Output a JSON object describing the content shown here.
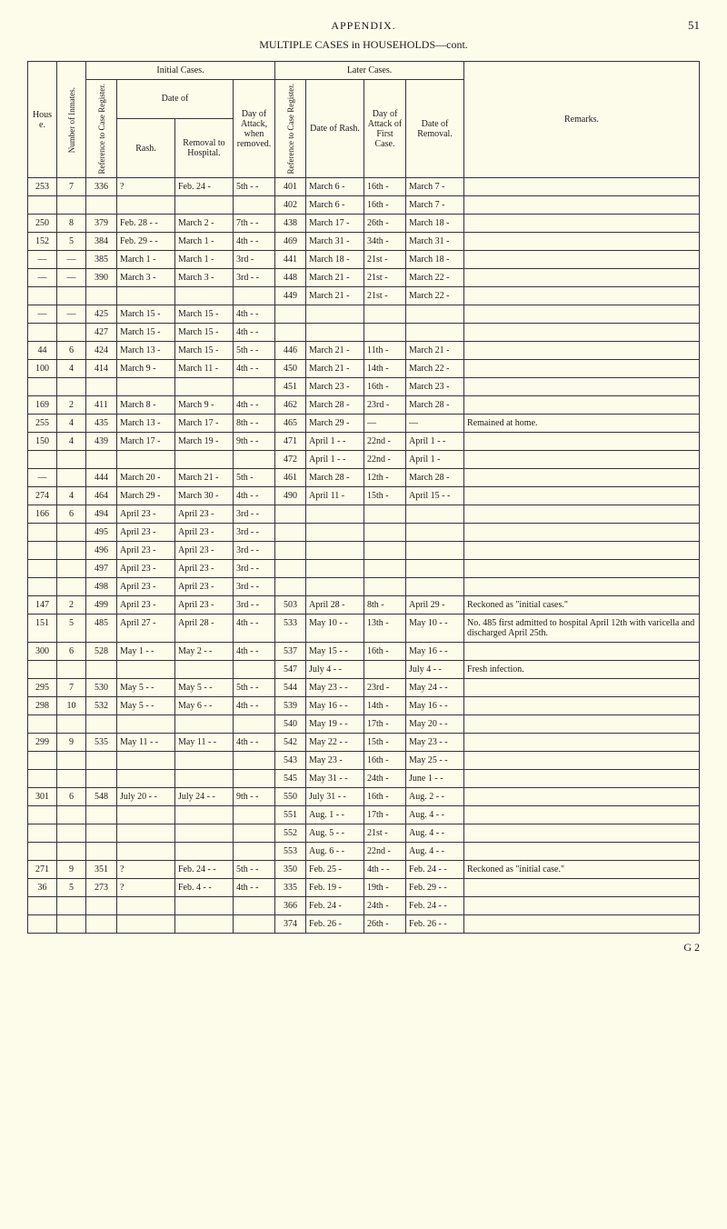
{
  "header": {
    "title": "APPENDIX.",
    "page_number": "51",
    "subtitle": "MULTIPLE CASES in HOUSEHOLDS—cont."
  },
  "columns": {
    "house": "House.",
    "inmates": "Number of Inmates.",
    "initial_group": "Initial Cases.",
    "later_group": "Later Cases.",
    "ref": "Reference to Case Register.",
    "date_of": "Date of",
    "rash": "Rash.",
    "removal": "Removal to Hospital.",
    "day_attack": "Day of Attack, when removed.",
    "ref2": "Reference to Case Register.",
    "date_rash": "Date of Rash.",
    "day_first": "Day of Attack of First Case.",
    "date_removal": "Date of Removal.",
    "remarks": "Remarks."
  },
  "rows": [
    {
      "g": "s",
      "house": "253",
      "inmates": "7",
      "ref": "336",
      "rash": "?",
      "removal": "Feb. 24  -",
      "day": "5th -  -",
      "ref2": "401",
      "drash": "March 6  -",
      "dfirst": "16th  -",
      "dremoval": "March 7  -",
      "remarks": ""
    },
    {
      "g": "c",
      "house": "",
      "inmates": "",
      "ref": "",
      "rash": "",
      "removal": "",
      "day": "",
      "ref2": "402",
      "drash": "March 6  -",
      "dfirst": "16th  -",
      "dremoval": "March 7  -",
      "remarks": ""
    },
    {
      "g": "s",
      "house": "250",
      "inmates": "8",
      "ref": "379",
      "rash": "Feb. 28 -  -",
      "removal": "March 2  -",
      "day": "7th -  -",
      "ref2": "438",
      "drash": "March 17  -",
      "dfirst": "26th  -",
      "dremoval": "March 18  -",
      "remarks": ""
    },
    {
      "g": "s",
      "house": "152",
      "inmates": "5",
      "ref": "384",
      "rash": "Feb. 29 -  -",
      "removal": "March 1  -",
      "day": "4th -  -",
      "ref2": "469",
      "drash": "March 31  -",
      "dfirst": "34th  -",
      "dremoval": "March 31  -",
      "remarks": ""
    },
    {
      "g": "s",
      "house": "—",
      "inmates": "—",
      "ref": "385",
      "rash": "March 1  -",
      "removal": "March 1  -",
      "day": "3rd -",
      "ref2": "441",
      "drash": "March 18  -",
      "dfirst": "21st  -",
      "dremoval": "March 18  -",
      "remarks": ""
    },
    {
      "g": "s",
      "house": "—",
      "inmates": "—",
      "ref": "390",
      "rash": "March 3  -",
      "removal": "March 3  -",
      "day": "3rd -  -",
      "ref2": "448",
      "drash": "March 21  -",
      "dfirst": "21st  -",
      "dremoval": "March 22  -",
      "remarks": ""
    },
    {
      "g": "c",
      "house": "",
      "inmates": "",
      "ref": "",
      "rash": "",
      "removal": "",
      "day": "",
      "ref2": "449",
      "drash": "March 21  -",
      "dfirst": "21st  -",
      "dremoval": "March 22  -",
      "remarks": ""
    },
    {
      "g": "s",
      "house": "—",
      "inmates": "—",
      "ref": "425",
      "rash": "March 15  -",
      "removal": "March 15  -",
      "day": "4th -  -",
      "ref2": "",
      "drash": "",
      "dfirst": "",
      "dremoval": "",
      "remarks": ""
    },
    {
      "g": "c",
      "house": "",
      "inmates": "",
      "ref": "427",
      "rash": "March 15  -",
      "removal": "March 15  -",
      "day": "4th -  -",
      "ref2": "",
      "drash": "",
      "dfirst": "",
      "dremoval": "",
      "remarks": ""
    },
    {
      "g": "s",
      "house": "44",
      "inmates": "6",
      "ref": "424",
      "rash": "March 13  -",
      "removal": "March 15  -",
      "day": "5th -  -",
      "ref2": "446",
      "drash": "March 21  -",
      "dfirst": "11th  -",
      "dremoval": "March 21  -",
      "remarks": ""
    },
    {
      "g": "s",
      "house": "100",
      "inmates": "4",
      "ref": "414",
      "rash": "March 9  -",
      "removal": "March 11  -",
      "day": "4th -  -",
      "ref2": "450",
      "drash": "March 21  -",
      "dfirst": "14th  -",
      "dremoval": "March 22  -",
      "remarks": ""
    },
    {
      "g": "c",
      "house": "",
      "inmates": "",
      "ref": "",
      "rash": "",
      "removal": "",
      "day": "",
      "ref2": "451",
      "drash": "March 23  -",
      "dfirst": "16th  -",
      "dremoval": "March 23  -",
      "remarks": ""
    },
    {
      "g": "s",
      "house": "169",
      "inmates": "2",
      "ref": "411",
      "rash": "March 8  -",
      "removal": "March 9  -",
      "day": "4th -  -",
      "ref2": "462",
      "drash": "March 28  -",
      "dfirst": "23rd  -",
      "dremoval": "March 28  -",
      "remarks": ""
    },
    {
      "g": "s",
      "house": "255",
      "inmates": "4",
      "ref": "435",
      "rash": "March 13  -",
      "removal": "March 17  -",
      "day": "8th -  -",
      "ref2": "465",
      "drash": "March 29  -",
      "dfirst": "—",
      "dremoval": "—",
      "remarks": "Remained at home."
    },
    {
      "g": "s",
      "house": "150",
      "inmates": "4",
      "ref": "439",
      "rash": "March 17  -",
      "removal": "March 19  -",
      "day": "9th -  -",
      "ref2": "471",
      "drash": "April 1  -  -",
      "dfirst": "22nd  -",
      "dremoval": "April 1  -  -",
      "remarks": ""
    },
    {
      "g": "c",
      "house": "",
      "inmates": "",
      "ref": "",
      "rash": "",
      "removal": "",
      "day": "",
      "ref2": "472",
      "drash": "April 1  -  -",
      "dfirst": "22nd  -",
      "dremoval": "April 1  -",
      "remarks": ""
    },
    {
      "g": "s",
      "house": "—",
      "inmates": "",
      "ref": "444",
      "rash": "March 20  -",
      "removal": "March 21  -",
      "day": "5th -",
      "ref2": "461",
      "drash": "March 28  -",
      "dfirst": "12th  -",
      "dremoval": "March 28  -",
      "remarks": ""
    },
    {
      "g": "s",
      "house": "274",
      "inmates": "4",
      "ref": "464",
      "rash": "March 29  -",
      "removal": "March 30  -",
      "day": "4th -  -",
      "ref2": "490",
      "drash": "April 11  -",
      "dfirst": "15th  -",
      "dremoval": "April 15 -  -",
      "remarks": ""
    },
    {
      "g": "s",
      "house": "166",
      "inmates": "6",
      "ref": "494",
      "rash": "April 23  -",
      "removal": "April 23  -",
      "day": "3rd -  -",
      "ref2": "",
      "drash": "",
      "dfirst": "",
      "dremoval": "",
      "remarks": ""
    },
    {
      "g": "c",
      "house": "",
      "inmates": "",
      "ref": "495",
      "rash": "April 23  -",
      "removal": "April 23  -",
      "day": "3rd -  -",
      "ref2": "",
      "drash": "",
      "dfirst": "",
      "dremoval": "",
      "remarks": ""
    },
    {
      "g": "c",
      "house": "",
      "inmates": "",
      "ref": "496",
      "rash": "April 23  -",
      "removal": "April 23  -",
      "day": "3rd -  -",
      "ref2": "",
      "drash": "",
      "dfirst": "",
      "dremoval": "",
      "remarks": ""
    },
    {
      "g": "c",
      "house": "",
      "inmates": "",
      "ref": "497",
      "rash": "April 23  -",
      "removal": "April 23  -",
      "day": "3rd -  -",
      "ref2": "",
      "drash": "",
      "dfirst": "",
      "dremoval": "",
      "remarks": ""
    },
    {
      "g": "c",
      "house": "",
      "inmates": "",
      "ref": "498",
      "rash": "April 23  -",
      "removal": "April 23  -",
      "day": "3rd -  -",
      "ref2": "",
      "drash": "",
      "dfirst": "",
      "dremoval": "",
      "remarks": ""
    },
    {
      "g": "s",
      "house": "147",
      "inmates": "2",
      "ref": "499",
      "rash": "April 23  -",
      "removal": "April 23  -",
      "day": "3rd -  -",
      "ref2": "503",
      "drash": "April 28  -",
      "dfirst": "8th  -",
      "dremoval": "April 29  -",
      "remarks": "Reckoned as \"initial cases.\""
    },
    {
      "g": "s",
      "house": "151",
      "inmates": "5",
      "ref": "485",
      "rash": "April 27  -",
      "removal": "April 28  -",
      "day": "4th -  -",
      "ref2": "533",
      "drash": "May 10 -  -",
      "dfirst": "13th  -",
      "dremoval": "May 10 -  -",
      "remarks": "No. 485 first admitted to hospital April 12th with varicella and discharged April 25th."
    },
    {
      "g": "s",
      "house": "300",
      "inmates": "6",
      "ref": "528",
      "rash": "May 1  -  -",
      "removal": "May 2  -  -",
      "day": "4th -  -",
      "ref2": "537",
      "drash": "May 15 -  -",
      "dfirst": "16th  -",
      "dremoval": "May 16 -  -",
      "remarks": ""
    },
    {
      "g": "c",
      "house": "",
      "inmates": "",
      "ref": "",
      "rash": "",
      "removal": "",
      "day": "",
      "ref2": "547",
      "drash": "July 4  -  -",
      "dfirst": "",
      "dremoval": "July 4  -  -",
      "remarks": "Fresh infection."
    },
    {
      "g": "s",
      "house": "295",
      "inmates": "7",
      "ref": "530",
      "rash": "May 5  -  -",
      "removal": "May 5  -  -",
      "day": "5th -  -",
      "ref2": "544",
      "drash": "May 23 -  -",
      "dfirst": "23rd  -",
      "dremoval": "May 24 -  -",
      "remarks": ""
    },
    {
      "g": "s",
      "house": "298",
      "inmates": "10",
      "ref": "532",
      "rash": "May 5  -  -",
      "removal": "May 6  -  -",
      "day": "4th -  -",
      "ref2": "539",
      "drash": "May 16 -  -",
      "dfirst": "14th  -",
      "dremoval": "May 16 -  -",
      "remarks": ""
    },
    {
      "g": "c",
      "house": "",
      "inmates": "",
      "ref": "",
      "rash": "",
      "removal": "",
      "day": "",
      "ref2": "540",
      "drash": "May 19 -  -",
      "dfirst": "17th  -",
      "dremoval": "May 20 -  -",
      "remarks": ""
    },
    {
      "g": "s",
      "house": "299",
      "inmates": "9",
      "ref": "535",
      "rash": "May 11  -  -",
      "removal": "May 11  -  -",
      "day": "4th -  -",
      "ref2": "542",
      "drash": "May 22  -  -",
      "dfirst": "15th  -",
      "dremoval": "May 23 -  -",
      "remarks": ""
    },
    {
      "g": "c",
      "house": "",
      "inmates": "",
      "ref": "",
      "rash": "",
      "removal": "",
      "day": "",
      "ref2": "543",
      "drash": "May 23  -",
      "dfirst": "16th  -",
      "dremoval": "May 25 -  -",
      "remarks": ""
    },
    {
      "g": "c",
      "house": "",
      "inmates": "",
      "ref": "",
      "rash": "",
      "removal": "",
      "day": "",
      "ref2": "545",
      "drash": "May 31 -  -",
      "dfirst": "24th  -",
      "dremoval": "June 1 -  -",
      "remarks": ""
    },
    {
      "g": "s",
      "house": "301",
      "inmates": "6",
      "ref": "548",
      "rash": "July 20 -  -",
      "removal": "July 24 -  -",
      "day": "9th -  -",
      "ref2": "550",
      "drash": "July 31 -  -",
      "dfirst": "16th  -",
      "dremoval": "Aug. 2  -  -",
      "remarks": ""
    },
    {
      "g": "c",
      "house": "",
      "inmates": "",
      "ref": "",
      "rash": "",
      "removal": "",
      "day": "",
      "ref2": "551",
      "drash": "Aug. 1  -  -",
      "dfirst": "17th  -",
      "dremoval": "Aug. 4  -  -",
      "remarks": ""
    },
    {
      "g": "c",
      "house": "",
      "inmates": "",
      "ref": "",
      "rash": "",
      "removal": "",
      "day": "",
      "ref2": "552",
      "drash": "Aug. 5  -  -",
      "dfirst": "21st  -",
      "dremoval": "Aug. 4  -  -",
      "remarks": ""
    },
    {
      "g": "c",
      "house": "",
      "inmates": "",
      "ref": "",
      "rash": "",
      "removal": "",
      "day": "",
      "ref2": "553",
      "drash": "Aug. 6  -  -",
      "dfirst": "22nd  -",
      "dremoval": "Aug. 4  -  -",
      "remarks": ""
    },
    {
      "g": "s",
      "house": "271",
      "inmates": "9",
      "ref": "351",
      "rash": "?",
      "removal": "Feb. 24 -  -",
      "day": "5th -  -",
      "ref2": "350",
      "drash": "Feb. 25  -",
      "dfirst": "4th -  -",
      "dremoval": "Feb. 24 -  -",
      "remarks": "Reckoned as \"initial case.\""
    },
    {
      "g": "s",
      "house": "36",
      "inmates": "5",
      "ref": "273",
      "rash": "?",
      "removal": "Feb. 4  -  -",
      "day": "4th -  -",
      "ref2": "335",
      "drash": "Feb. 19  -",
      "dfirst": "19th  -",
      "dremoval": "Feb. 29 -  -",
      "remarks": ""
    },
    {
      "g": "c",
      "house": "",
      "inmates": "",
      "ref": "",
      "rash": "",
      "removal": "",
      "day": "",
      "ref2": "366",
      "drash": "Feb. 24  -",
      "dfirst": "24th  -",
      "dremoval": "Feb. 24 -  -",
      "remarks": ""
    },
    {
      "g": "c",
      "house": "",
      "inmates": "",
      "ref": "",
      "rash": "",
      "removal": "",
      "day": "",
      "ref2": "374",
      "drash": "Feb. 26  -",
      "dfirst": "26th  -",
      "dremoval": "Feb. 26 -  -",
      "remarks": ""
    }
  ],
  "footer": "G 2"
}
